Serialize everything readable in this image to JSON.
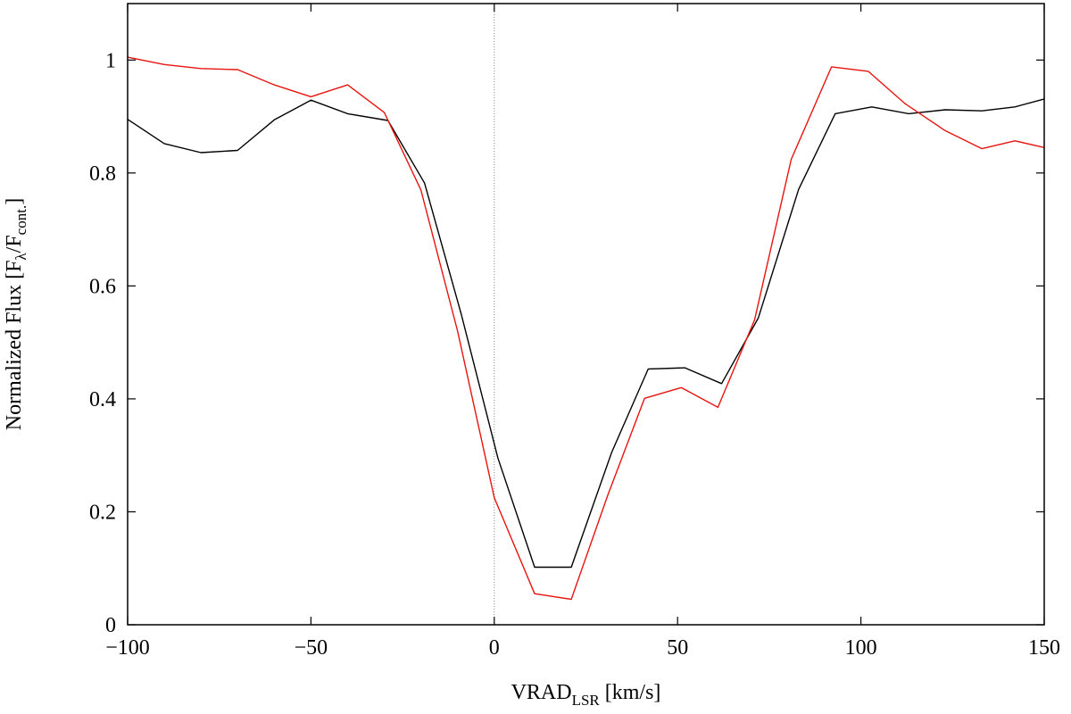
{
  "chart_data": {
    "type": "line",
    "xlabel": {
      "main": "VRAD",
      "sub": "LSR",
      "unit": "[km/s]"
    },
    "ylabel": {
      "prefix": "Normalized Flux [F",
      "sub1": "λ",
      "mid": "/F",
      "sub2": "cont.",
      "suffix": "]"
    },
    "xlim": [
      -100,
      150
    ],
    "ylim": [
      0,
      1.1
    ],
    "xticks": [
      -100,
      -50,
      0,
      50,
      100,
      150
    ],
    "xtick_labels": [
      "−100",
      "−50",
      "0",
      "50",
      "100",
      "150"
    ],
    "yticks": [
      0,
      0.2,
      0.4,
      0.6,
      0.8,
      1
    ],
    "ytick_labels": [
      "0",
      "0.2",
      "0.4",
      "0.6",
      "0.8",
      "1"
    ],
    "reference_line_x": 0,
    "series": [
      {
        "color": "#000000",
        "x": [
          -100,
          -90,
          -80,
          -70,
          -60,
          -50,
          -40,
          -29,
          -19,
          -9,
          1,
          11,
          21,
          32,
          42,
          52,
          62,
          72,
          83,
          93,
          103,
          113,
          123,
          133,
          142,
          150
        ],
        "y": [
          0.895,
          0.852,
          0.836,
          0.84,
          0.894,
          0.929,
          0.905,
          0.893,
          0.782,
          0.55,
          0.295,
          0.102,
          0.102,
          0.305,
          0.453,
          0.455,
          0.427,
          0.543,
          0.771,
          0.905,
          0.917,
          0.905,
          0.912,
          0.91,
          0.917,
          0.931
        ]
      },
      {
        "color": "#e8140f",
        "x": [
          -100,
          -90,
          -80,
          -70,
          -60,
          -50,
          -40,
          -30,
          -20,
          -10,
          0,
          11,
          21,
          31,
          41,
          51,
          61,
          71,
          81,
          92,
          102,
          112,
          123,
          133,
          142,
          150
        ],
        "y": [
          1.005,
          0.992,
          0.985,
          0.983,
          0.956,
          0.935,
          0.956,
          0.907,
          0.77,
          0.52,
          0.225,
          0.055,
          0.045,
          0.23,
          0.401,
          0.42,
          0.385,
          0.54,
          0.824,
          0.988,
          0.98,
          0.923,
          0.875,
          0.843,
          0.857,
          0.845
        ]
      }
    ]
  }
}
